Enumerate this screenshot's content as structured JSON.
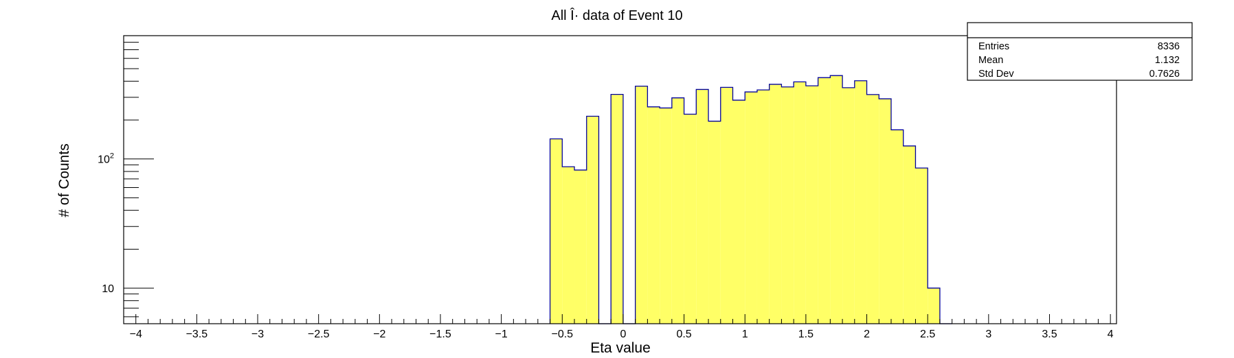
{
  "chart_data": {
    "type": "bar",
    "title": "All Î· data of Event 10",
    "xlabel": "Eta value",
    "ylabel": "# of Counts",
    "xlim": [
      -4.1,
      4.05
    ],
    "ylim": [
      5.3,
      900
    ],
    "y_scale": "log",
    "x_tick_labels": [
      "−4",
      "−3.5",
      "−3",
      "−2.5",
      "−2",
      "−1.5",
      "−1",
      "−0.5",
      "0",
      "0.5",
      "1",
      "1.5",
      "2",
      "2.5",
      "3",
      "3.5",
      "4"
    ],
    "y_tick_labels": [
      {
        "base": "10",
        "exp": "2",
        "value": 100
      },
      {
        "base": "10",
        "exp": "",
        "value": 10
      }
    ],
    "grid": false,
    "bin_width": 0.1,
    "bin_starts": [
      -0.6,
      -0.5,
      -0.4,
      -0.3,
      -0.2,
      -0.1,
      0.0,
      0.1,
      0.2,
      0.3,
      0.4,
      0.5,
      0.6,
      0.7,
      0.8,
      0.9,
      1.0,
      1.1,
      1.2,
      1.3,
      1.4,
      1.5,
      1.6,
      1.7,
      1.8,
      1.9,
      2.0,
      2.1,
      2.2,
      2.3,
      2.4,
      2.5,
      2.6
    ],
    "values": [
      143,
      87,
      82,
      214,
      0,
      316,
      0,
      366,
      253,
      248,
      297,
      222,
      345,
      196,
      358,
      285,
      330,
      342,
      378,
      361,
      395,
      368,
      426,
      442,
      356,
      403,
      315,
      292,
      168,
      126,
      85,
      10,
      0
    ],
    "fill_color": "#ffff66",
    "line_color": "#00009c",
    "stats_box": {
      "header": "",
      "rows": [
        {
          "label": "Entries",
          "value": "8336"
        },
        {
          "label": "Mean",
          "value": "1.132"
        },
        {
          "label": "Std Dev",
          "value": "0.7626"
        }
      ]
    }
  }
}
